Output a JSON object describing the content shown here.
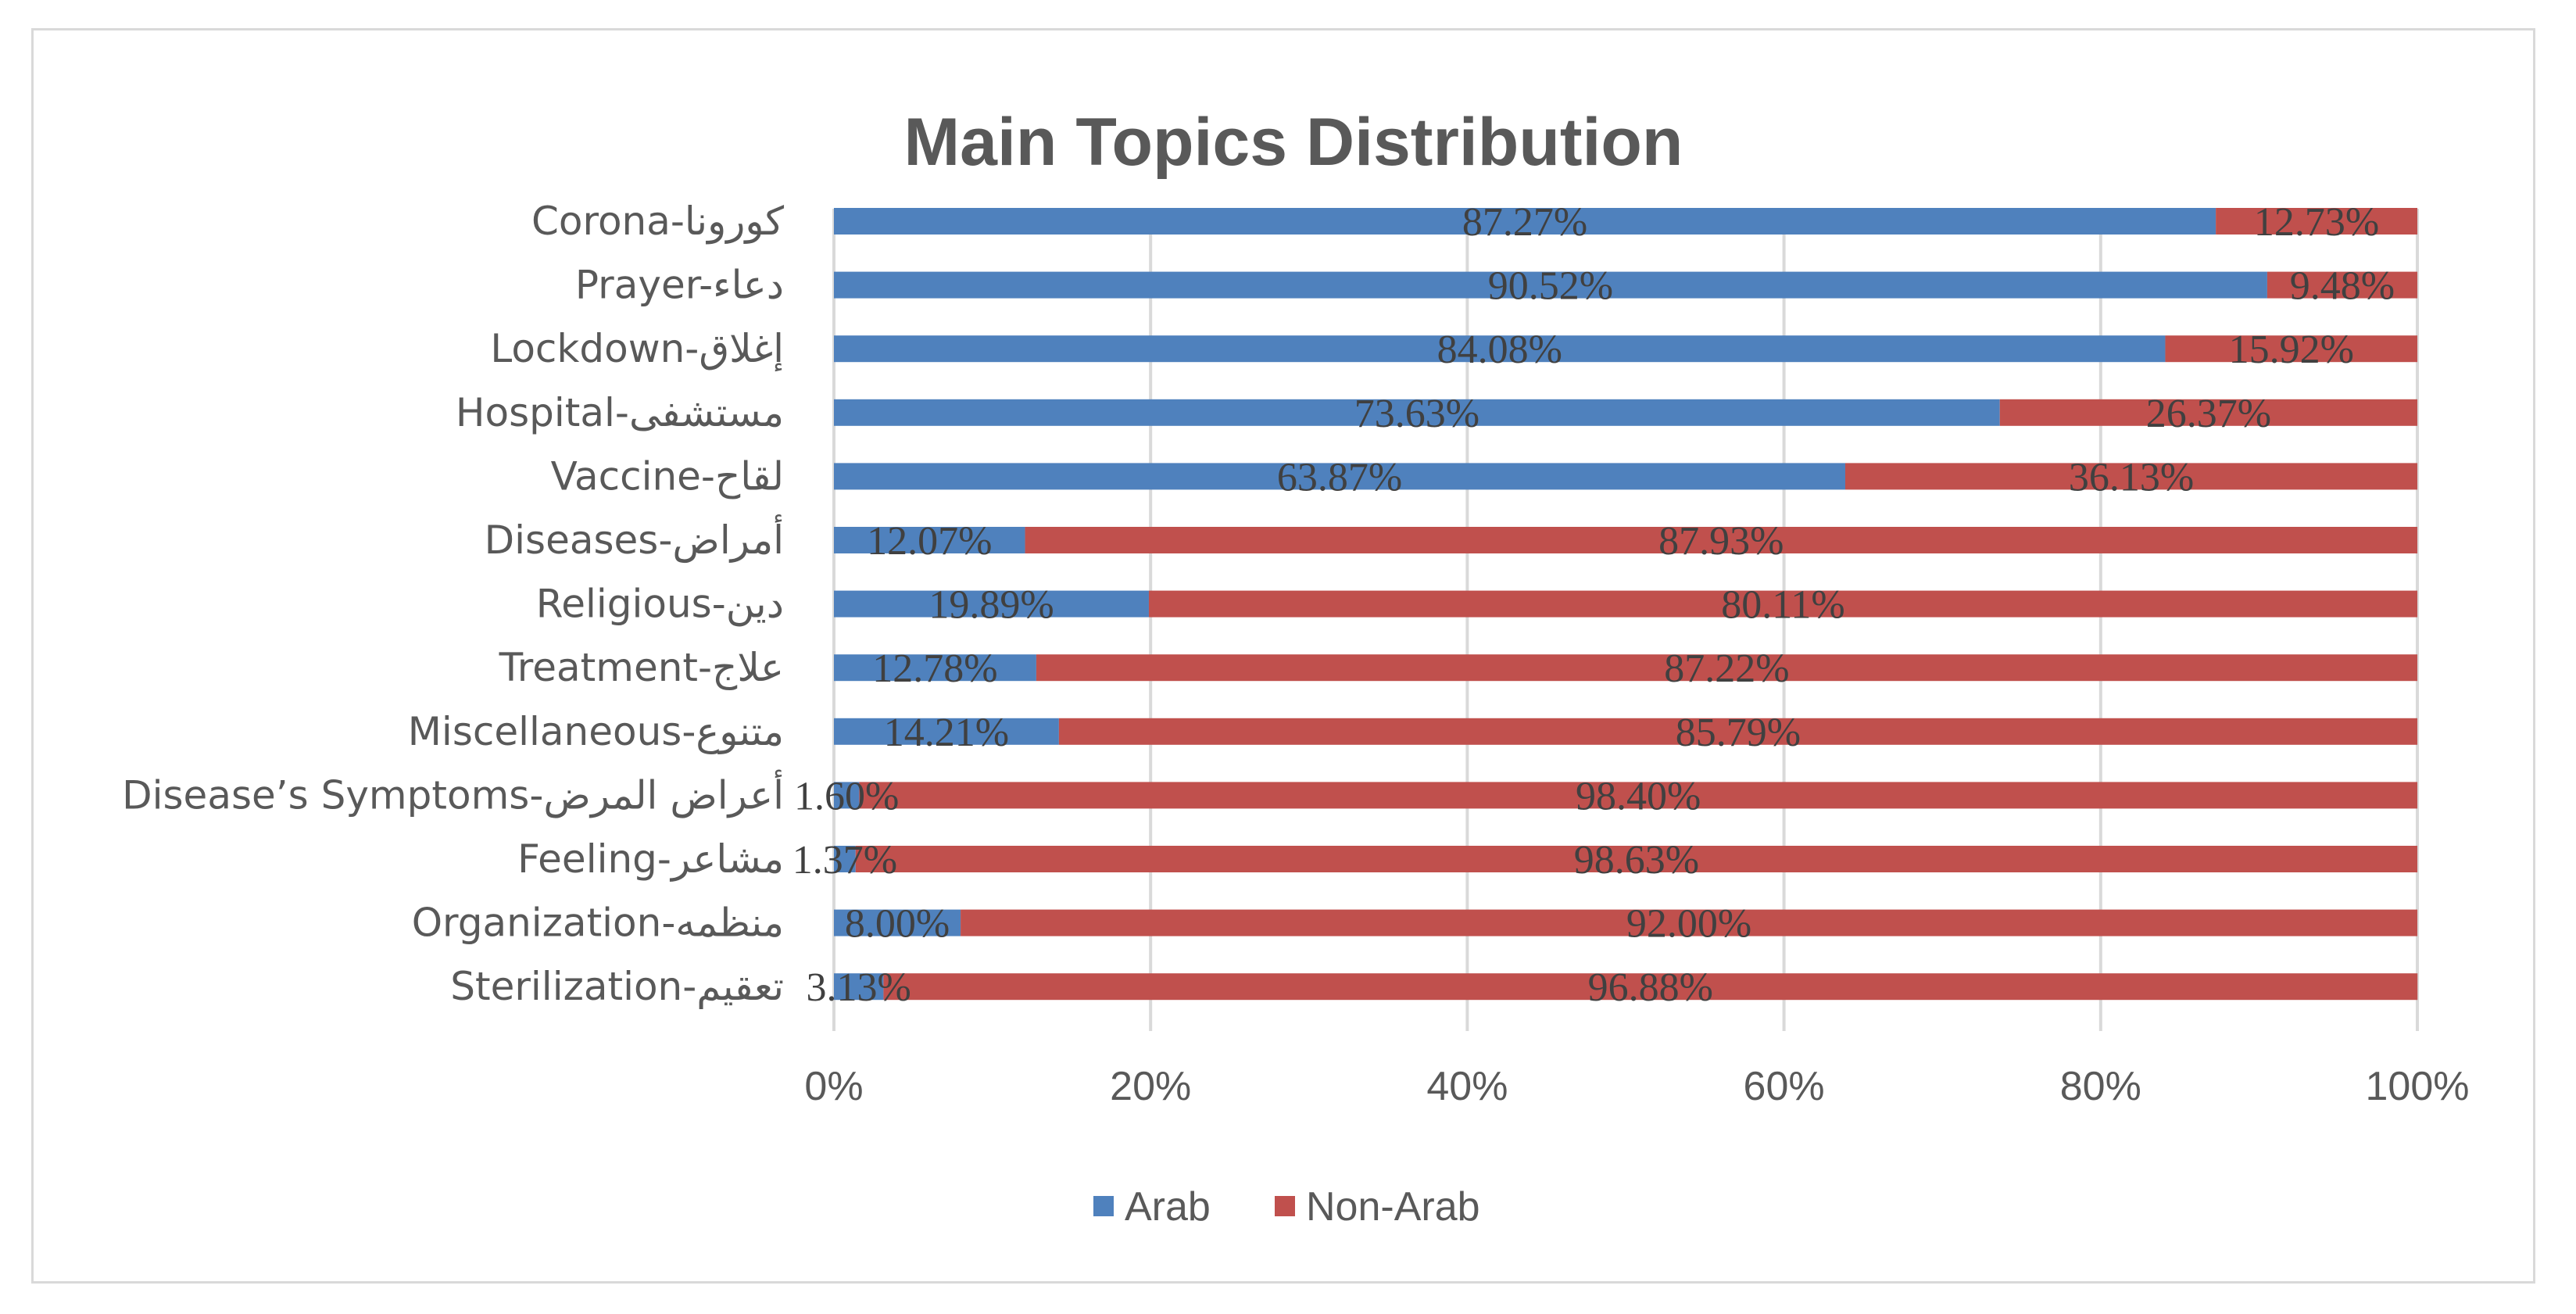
{
  "chart_data": {
    "type": "bar",
    "orientation": "horizontal",
    "stacked": "percent",
    "title": "Main Topics Distribution",
    "categories": [
      "Corona-كورونا",
      "Prayer-دعاء",
      "Lockdown-إغلاق",
      "Hospital-مستشفى",
      "Vaccine-لقاح",
      "Diseases-أمراض",
      "Religious-دين",
      "Treatment-علاج",
      "Miscellaneous-متنوع",
      "Disease’s Symptoms-أعراض المرض",
      "Feeling-مشاعر",
      "Organization-منظمه",
      "Sterilization-تعقيم"
    ],
    "series": [
      {
        "name": "Arab",
        "color": "#4f81bd",
        "values": [
          87.27,
          90.52,
          84.08,
          73.63,
          63.87,
          12.07,
          19.89,
          12.78,
          14.21,
          1.6,
          1.37,
          8.0,
          3.13
        ],
        "labels": [
          "87.27%",
          "90.52%",
          "84.08%",
          "73.63%",
          "63.87%",
          "12.07%",
          "19.89%",
          "12.78%",
          "14.21%",
          "1.60%",
          "1.37%",
          "8.00%",
          "3.13%"
        ]
      },
      {
        "name": "Non-Arab",
        "color": "#c0504d",
        "values": [
          12.73,
          9.48,
          15.92,
          26.37,
          36.13,
          87.93,
          80.11,
          87.22,
          85.79,
          98.4,
          98.63,
          92.0,
          96.88
        ],
        "labels": [
          "12.73%",
          "9.48%",
          "15.92%",
          "26.37%",
          "36.13%",
          "87.93%",
          "80.11%",
          "87.22%",
          "85.79%",
          "98.40%",
          "98.63%",
          "92.00%",
          "96.88%"
        ]
      }
    ],
    "xlim": [
      0,
      100
    ],
    "x_ticks": [
      "0%",
      "20%",
      "40%",
      "60%",
      "80%",
      "100%"
    ],
    "grid": true,
    "legend_position": "bottom"
  }
}
